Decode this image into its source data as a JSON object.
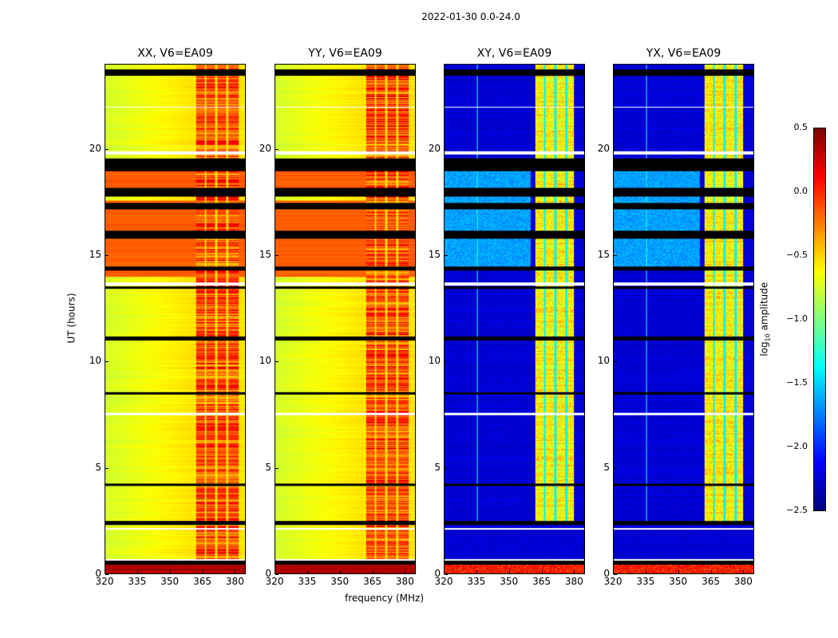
{
  "suptitle": "2022-01-30 0.0-24.0",
  "chart_data": {
    "type": "heatmap",
    "title": "2022-01-30 0.0-24.0",
    "xlabel": "frequency (MHz)",
    "ylabel": "UT (hours)",
    "xlim": [
      320,
      385
    ],
    "ylim": [
      0,
      24
    ],
    "xticks": [
      "320",
      "335",
      "350",
      "365",
      "380"
    ],
    "yticks": [
      "0",
      "5",
      "10",
      "15",
      "20"
    ],
    "panels": [
      {
        "title": "XX, V6=EA09",
        "kind": "parallel"
      },
      {
        "title": "YY, V6=EA09",
        "kind": "parallel"
      },
      {
        "title": "XY, V6=EA09",
        "kind": "cross"
      },
      {
        "title": "YX, V6=EA09",
        "kind": "cross"
      }
    ],
    "colormap": "jet",
    "colorbar": {
      "label_main": "log",
      "label_sub": "10",
      "label_rest": " amplitude",
      "range": [
        -2.5,
        0.5
      ],
      "ticks": [
        "0.5",
        "0.0",
        "−0.5",
        "−1.0",
        "−1.5",
        "−2.0",
        "−2.5"
      ]
    },
    "rfi_band_mhz": [
      362,
      382
    ],
    "flagged_hours_black": [
      [
        0.45,
        0.62
      ],
      [
        2.3,
        2.5
      ],
      [
        4.15,
        4.25
      ],
      [
        8.45,
        8.55
      ],
      [
        11.0,
        11.2
      ],
      [
        13.45,
        13.55
      ],
      [
        14.3,
        14.5
      ],
      [
        15.8,
        16.2
      ],
      [
        17.2,
        17.5
      ],
      [
        17.8,
        18.2
      ],
      [
        19.0,
        19.6
      ],
      [
        23.5,
        23.8
      ]
    ],
    "flagged_hours_white": [
      [
        0.62,
        0.7
      ],
      [
        2.1,
        2.15
      ],
      [
        7.5,
        7.6
      ],
      [
        13.6,
        13.75
      ],
      [
        19.8,
        19.95
      ],
      [
        22.0,
        22.05
      ]
    ]
  }
}
